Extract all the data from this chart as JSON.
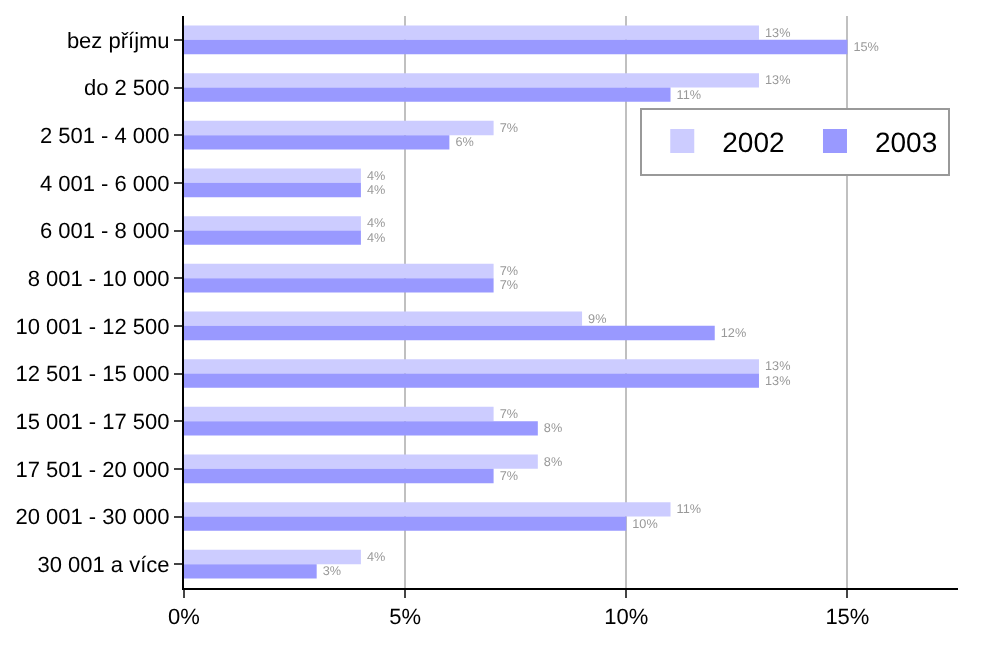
{
  "chart_data": {
    "type": "bar",
    "orientation": "horizontal",
    "categories": [
      "bez příjmu",
      "do 2 500",
      "2 501 - 4 000",
      "4 001 - 6 000",
      "6 001 - 8 000",
      "8 001 - 10 000",
      "10 001 - 12 500",
      "12 501 - 15 000",
      "15 001 - 17 500",
      "17 501 - 20 000",
      "20 001 - 30 000",
      "30 001 a více"
    ],
    "series": [
      {
        "name": "2002",
        "color": "#ccccff",
        "values": [
          13,
          13,
          7,
          4,
          4,
          7,
          9,
          13,
          7,
          8,
          11,
          4
        ],
        "value_labels": [
          "13%",
          "13%",
          "7%",
          "4%",
          "4%",
          "7%",
          "9%",
          "13%",
          "7%",
          "8%",
          "11%",
          "4%"
        ]
      },
      {
        "name": "2003",
        "color": "#9999ff",
        "values": [
          15,
          11,
          6,
          4,
          4,
          7,
          12,
          13,
          8,
          7,
          10,
          3
        ],
        "value_labels": [
          "15%",
          "11%",
          "6%",
          "4%",
          "4%",
          "7%",
          "12%",
          "13%",
          "8%",
          "7%",
          "10%",
          "3%"
        ]
      }
    ],
    "xlim": [
      0,
      17.5
    ],
    "xticks": [
      {
        "value": 0,
        "label": "0%"
      },
      {
        "value": 5,
        "label": "5%"
      },
      {
        "value": 10,
        "label": "10%"
      },
      {
        "value": 15,
        "label": "15%"
      }
    ],
    "grid": "x",
    "legend": "right"
  }
}
